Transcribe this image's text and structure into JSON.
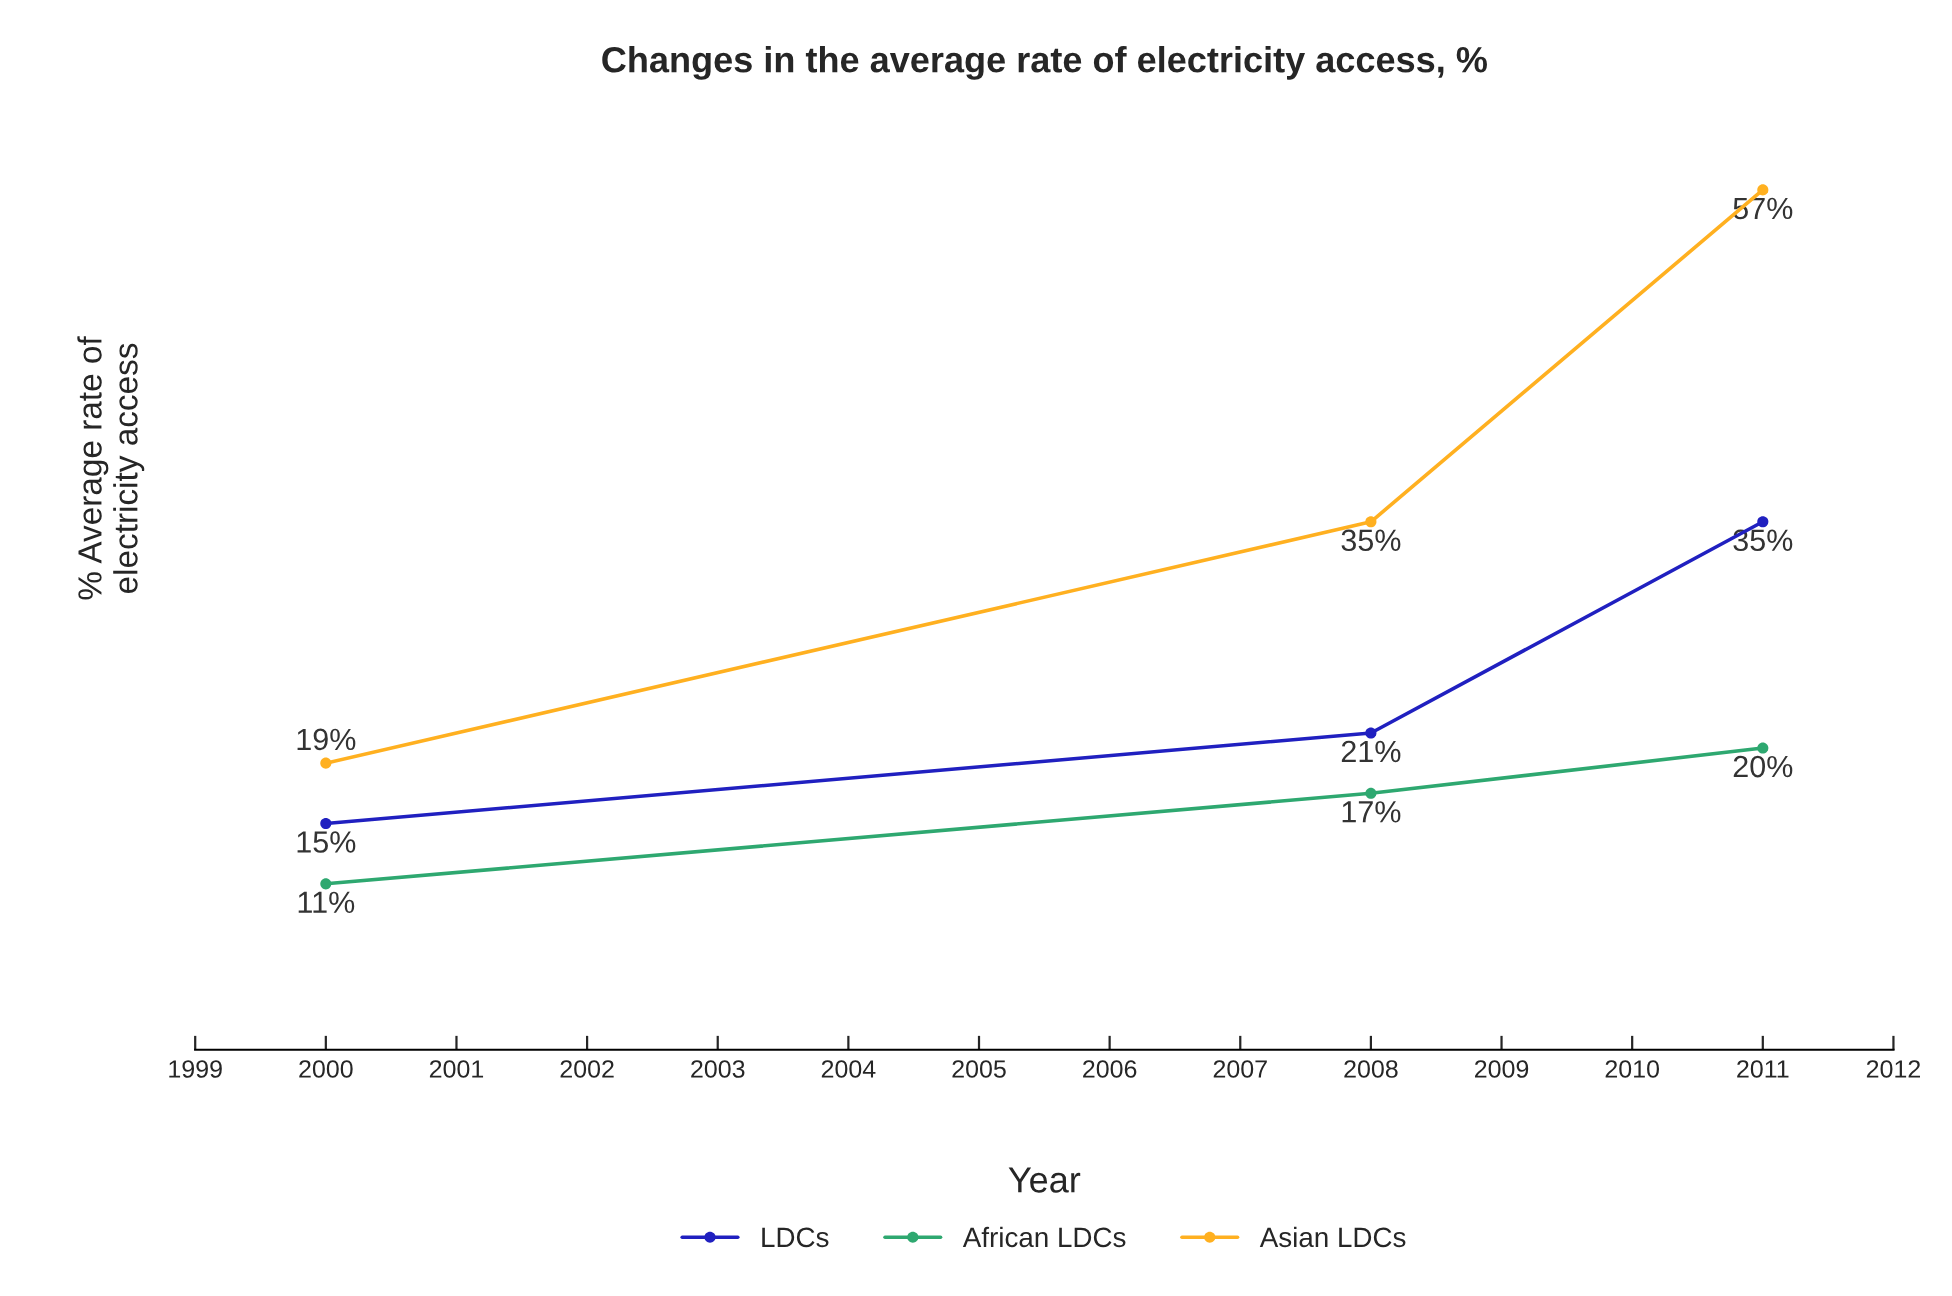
{
  "chart_data": {
    "type": "line",
    "title": "Changes in the average rate of electricity access, %",
    "xlabel": "Year",
    "ylabel": "% Average rate of\nelectricity access",
    "x": [
      2000,
      2008,
      2011
    ],
    "xlim": [
      1999,
      2012
    ],
    "xticks": [
      1999,
      2000,
      2001,
      2002,
      2003,
      2004,
      2005,
      2006,
      2007,
      2008,
      2009,
      2010,
      2011,
      2012
    ],
    "series": [
      {
        "name": "LDCs",
        "color": "#2020c0",
        "values": [
          15,
          21,
          35
        ],
        "value_labels": [
          "15%",
          "21%",
          "35%"
        ]
      },
      {
        "name": "African LDCs",
        "color": "#2ea870",
        "values": [
          11,
          17,
          20
        ],
        "value_labels": [
          "11%",
          "17%",
          "20%"
        ]
      },
      {
        "name": "Asian LDCs",
        "color": "#ffb020",
        "values": [
          19,
          35,
          57
        ],
        "value_labels": [
          "19%",
          "35%",
          "57%"
        ]
      }
    ],
    "legend": "bottom",
    "marker": "circle",
    "line_style": "solid",
    "grid": false,
    "tick_labels": "x"
  }
}
